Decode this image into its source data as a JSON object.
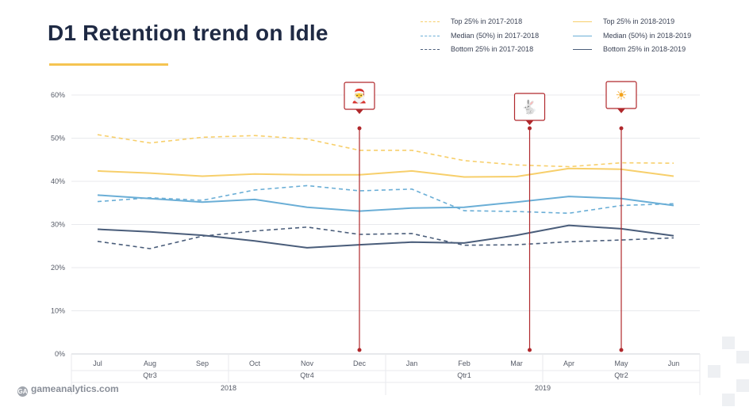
{
  "title": "D1 Retention trend on Idle",
  "logo_text": "gameanalytics.com",
  "legend": [
    {
      "label": "Top 25% in 2017-2018",
      "color": "#f7cf6b",
      "dashed": true
    },
    {
      "label": "Median (50%) in 2017-2018",
      "color": "#6aaed6",
      "dashed": true
    },
    {
      "label": "Bottom 25% in 2017-2018",
      "color": "#4a5d7a",
      "dashed": true
    },
    {
      "label": "Top 25% in 2018-2019",
      "color": "#f7cf6b",
      "dashed": false
    },
    {
      "label": "Median (50%) in 2018-2019",
      "color": "#6aaed6",
      "dashed": false
    },
    {
      "label": "Bottom 25% in  2018-2019",
      "color": "#4a5d7a",
      "dashed": false
    }
  ],
  "chart_data": {
    "type": "line",
    "categories": [
      "Jul",
      "Aug",
      "Sep",
      "Oct",
      "Nov",
      "Dec",
      "Jan",
      "Feb",
      "Mar",
      "Apr",
      "May",
      "Jun"
    ],
    "quarters": [
      "Qtr3",
      "Qtr4",
      "Qtr1",
      "Qtr2"
    ],
    "years": [
      "2018",
      "2019"
    ],
    "y_ticks": [
      "0%",
      "10%",
      "20%",
      "30%",
      "40%",
      "50%",
      "60%"
    ],
    "ylim": [
      0,
      60
    ],
    "grid": true,
    "series": [
      {
        "name": "Top 25% in 2017-2018",
        "color": "#f7cf6b",
        "dashed": true,
        "values": [
          50.8,
          48.9,
          50.2,
          50.6,
          49.8,
          47.2,
          47.2,
          44.8,
          43.8,
          43.4,
          44.3,
          44.2
        ]
      },
      {
        "name": "Median (50%) in 2017-2018",
        "color": "#6aaed6",
        "dashed": true,
        "values": [
          35.3,
          36.2,
          35.6,
          38.0,
          39.0,
          37.8,
          38.2,
          33.2,
          33.0,
          32.6,
          34.4,
          34.8
        ]
      },
      {
        "name": "Bottom 25% in 2017-2018",
        "color": "#4a5d7a",
        "dashed": true,
        "values": [
          26.1,
          24.4,
          27.3,
          28.5,
          29.4,
          27.7,
          27.9,
          25.2,
          25.3,
          26.0,
          26.4,
          26.9
        ]
      },
      {
        "name": "Top 25% in 2018-2019",
        "color": "#f7cf6b",
        "dashed": false,
        "values": [
          42.4,
          41.9,
          41.2,
          41.7,
          41.5,
          41.5,
          42.4,
          41.0,
          41.1,
          43.0,
          42.8,
          41.2
        ]
      },
      {
        "name": "Median (50%) in 2018-2019",
        "color": "#6aaed6",
        "dashed": false,
        "values": [
          36.8,
          36.0,
          35.2,
          35.8,
          34.0,
          33.1,
          33.8,
          34.0,
          35.2,
          36.5,
          36.0,
          34.4
        ]
      },
      {
        "name": "Bottom 25% in  2018-2019",
        "color": "#4a5d7a",
        "dashed": false,
        "values": [
          28.9,
          28.3,
          27.5,
          26.2,
          24.6,
          25.3,
          25.9,
          25.7,
          27.5,
          29.8,
          29.0,
          27.4
        ]
      }
    ],
    "markers": [
      {
        "icon": "santa-icon",
        "glyph": "🎅",
        "x": 6.0
      },
      {
        "icon": "rabbit-icon",
        "glyph": "🐇",
        "x": 9.25
      },
      {
        "icon": "sun-icon",
        "glyph": "☀",
        "x": 11.0
      }
    ]
  }
}
